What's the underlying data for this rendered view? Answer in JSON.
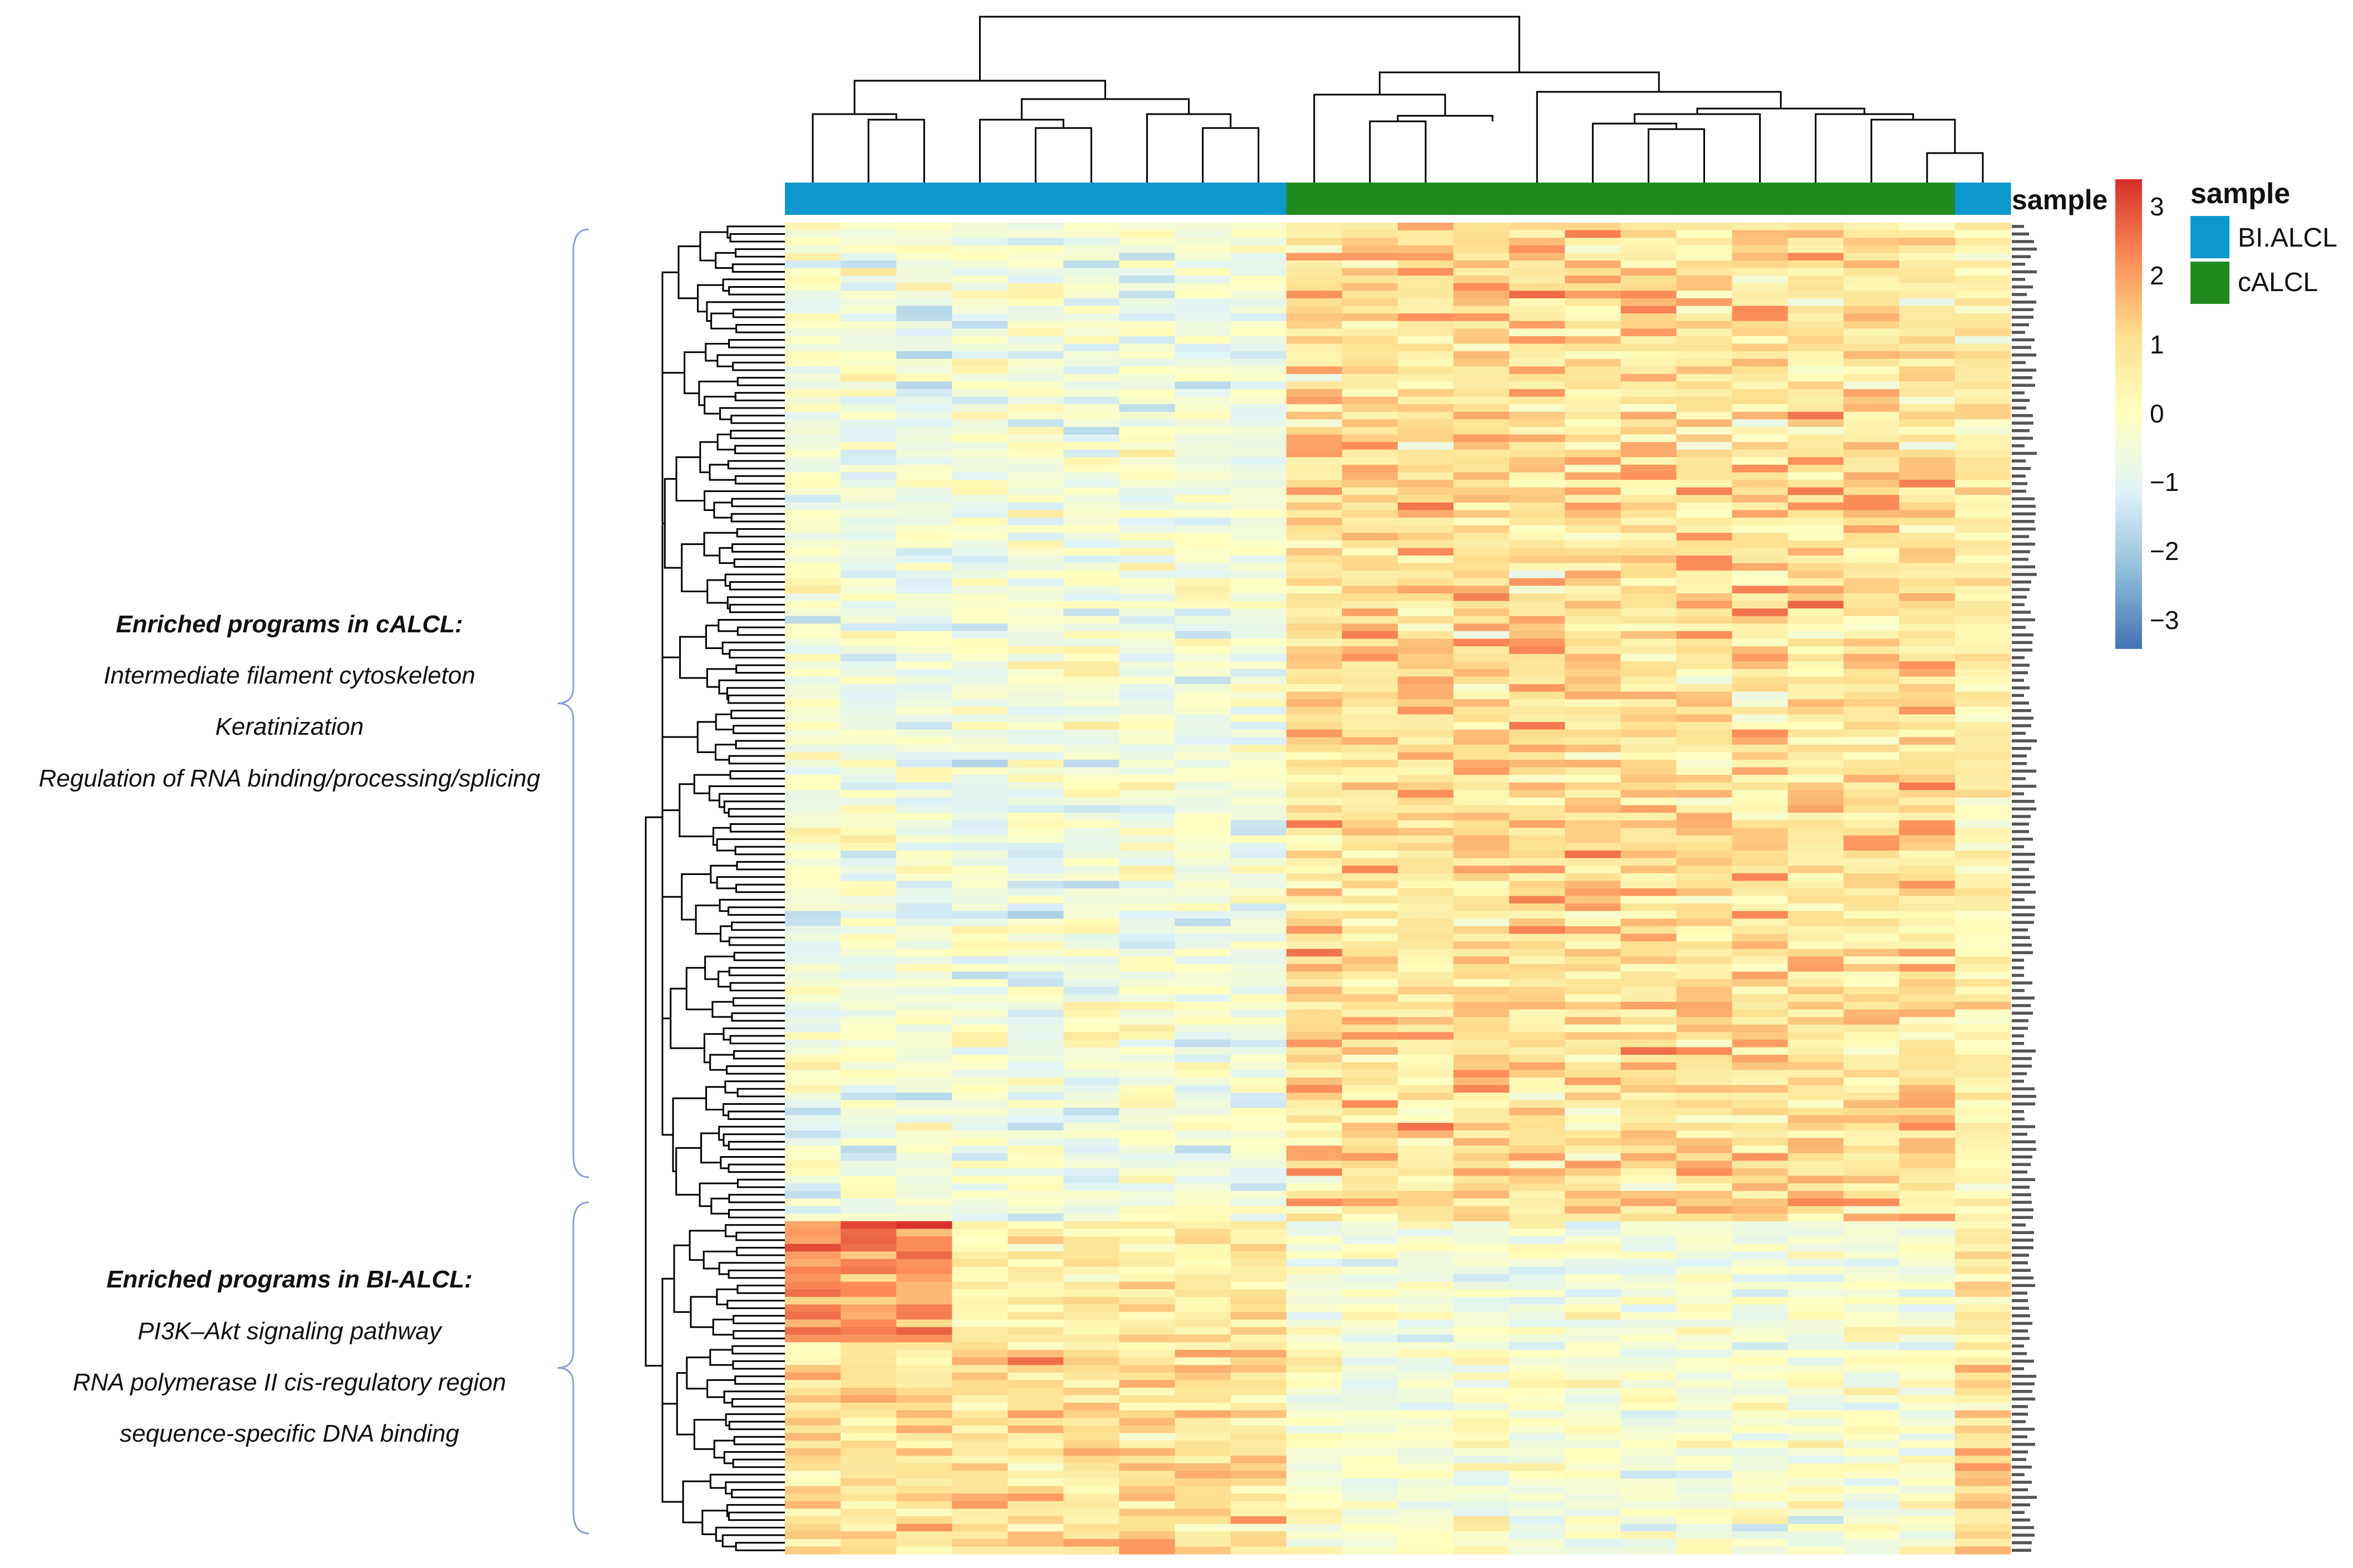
{
  "chart_data": {
    "type": "heatmap",
    "title": "",
    "n_rows": 176,
    "n_cols": 22,
    "column_annotation": {
      "name": "sample",
      "groups": [
        "BI.ALCL",
        "BI.ALCL",
        "BI.ALCL",
        "BI.ALCL",
        "BI.ALCL",
        "BI.ALCL",
        "BI.ALCL",
        "BI.ALCL",
        "BI.ALCL",
        "cALCL",
        "cALCL",
        "cALCL",
        "cALCL",
        "cALCL",
        "cALCL",
        "cALCL",
        "cALCL",
        "cALCL",
        "cALCL",
        "cALCL",
        "cALCL",
        "BI.ALCL"
      ]
    },
    "legend": {
      "title": "sample",
      "entries": [
        {
          "label": "BI.ALCL",
          "color": "#0c98cc"
        },
        {
          "label": "cALCL",
          "color": "#218a21"
        }
      ]
    },
    "color_scale": {
      "ticks": [
        "3",
        "2",
        "1",
        "0",
        "−1",
        "−2",
        "−3"
      ],
      "min": -3.4,
      "max": 3.4,
      "colors": [
        "#4575b4",
        "#91bfdb",
        "#e0f3f8",
        "#ffffbf",
        "#fee090",
        "#fc8d59",
        "#d73027"
      ]
    },
    "row_clusters": [
      {
        "name": "cALCL-enriched",
        "rows": [
          0,
          131
        ]
      },
      {
        "name": "BI-ALCL-enriched",
        "rows": [
          132,
          175
        ]
      }
    ],
    "annotations": {
      "calcl": {
        "title": "Enriched programs in cALCL:",
        "lines": [
          "Intermediate filament cytoskeleton",
          "Keratinization",
          "Regulation of RNA binding/processing/splicing"
        ]
      },
      "bialcl": {
        "title": "Enriched programs in BI-ALCL:",
        "lines": [
          "PI3K–Akt signaling pathway",
          "RNA polymerase II cis-regulatory region",
          "sequence-specific DNA binding"
        ]
      }
    },
    "sample_label": "sample"
  }
}
